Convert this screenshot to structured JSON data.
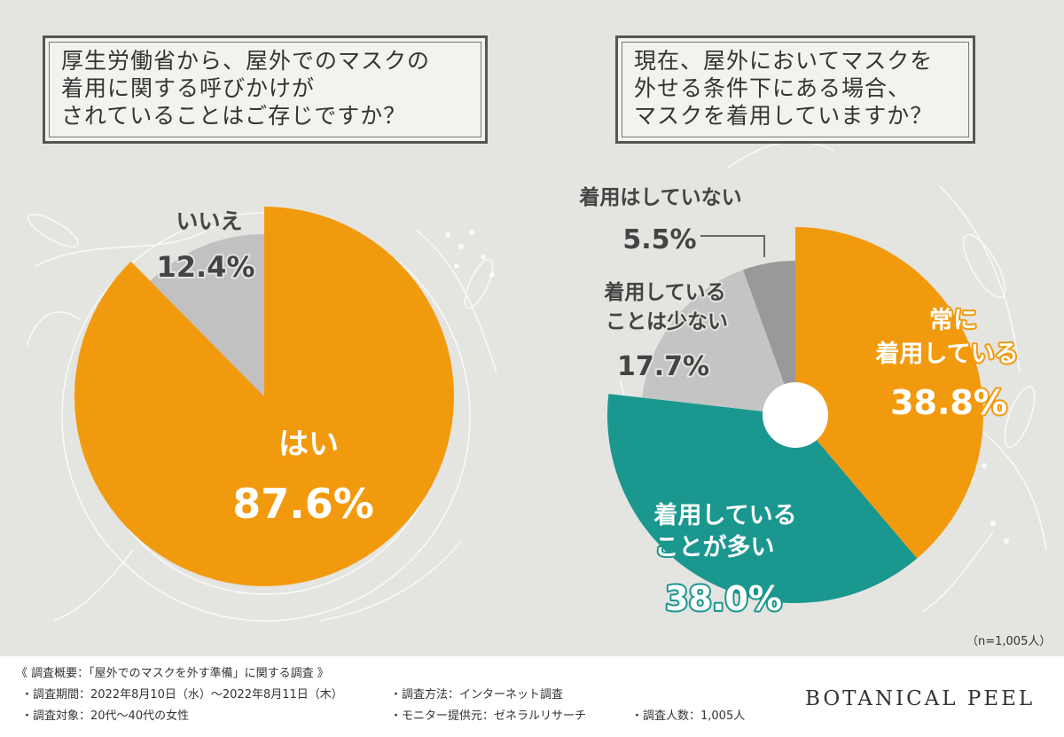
{
  "questions": {
    "q1": [
      "厚生労働省から、屋外でのマスクの",
      "着用に関する呼びかけが",
      "されていることはご存じですか？"
    ],
    "q2": [
      "現在、屋外においてマスクを",
      "外せる条件下にある場合、",
      "マスクを着用していますか？"
    ]
  },
  "chart_data": [
    {
      "type": "pie",
      "title": "厚生労働省から、屋外でのマスクの着用に関する呼びかけがされていることはご存じですか？",
      "categories": [
        "はい",
        "いいえ"
      ],
      "values": [
        87.6,
        12.4
      ],
      "value_labels": [
        "87.6%",
        "12.4%"
      ],
      "colors": [
        "#f29a0e",
        "#c1c1c1"
      ]
    },
    {
      "type": "pie",
      "title": "現在、屋外においてマスクを外せる条件下にある場合、マスクを着用していますか？",
      "categories": [
        "常に着用している",
        "着用していることが多い",
        "着用していることは少ない",
        "着用はしていない"
      ],
      "label_lines": [
        [
          "常に",
          "着用している"
        ],
        [
          "着用している",
          "ことが多い"
        ],
        [
          "着用している",
          "ことは少ない"
        ],
        [
          "着用はしていない"
        ]
      ],
      "values": [
        38.8,
        38.0,
        17.7,
        5.5
      ],
      "value_labels": [
        "38.8%",
        "38.0%",
        "17.7%",
        "5.5%"
      ],
      "colors": [
        "#f29a0e",
        "#1a978f",
        "#c4c4c4",
        "#999999"
      ]
    }
  ],
  "sample_size": "（n=1,005人）",
  "footer": {
    "heading": "《 調査概要：「屋外でのマスクを外す準備」に関する調査 》",
    "period": "・調査期間：2022年8月10日（水）～2022年8月11日（木）",
    "method": "・調査方法：インターネット調査",
    "target": "・調査対象：20代～40代の女性",
    "provider": "・モニター提供元：ゼネラルリサーチ",
    "count": "・調査人数：1,005人"
  },
  "brand": "BOTANICAL PEEL"
}
